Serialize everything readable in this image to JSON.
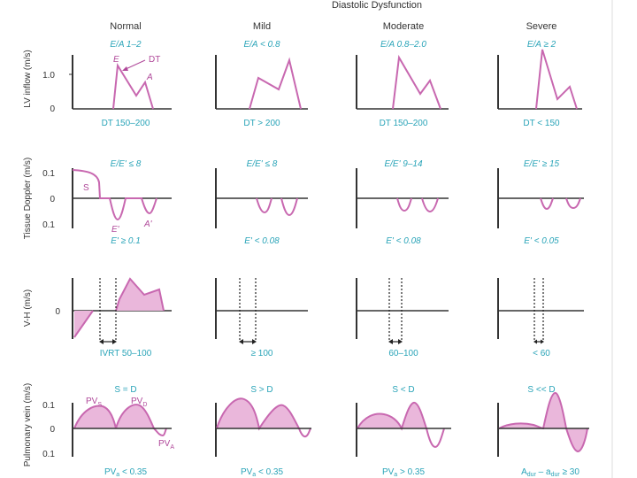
{
  "header": "Diastolic Dysfunction",
  "columns": [
    "Normal",
    "Mild",
    "Moderate",
    "Severe"
  ],
  "colors": {
    "axis": "#333333",
    "curve": "#c868b0",
    "fill": "#eab7db",
    "teal": "#2aa4b8",
    "pink_label": "#b0499a"
  },
  "rows": [
    {
      "ylabel": "LV inflow (m/s)",
      "yticks": [
        "1.0",
        "0"
      ],
      "top": [
        "E/A 1–2",
        "E/A < 0.8",
        "E/A 0.8–2.0",
        "E/A ≥ 2"
      ],
      "bottom": [
        "DT 150–200",
        "DT > 200",
        "DT 150–200",
        "DT < 150"
      ],
      "labels": {
        "e": "E",
        "a": "A",
        "dt": "DT"
      }
    },
    {
      "ylabel": "Tissue Doppler (m/s)",
      "yticks": [
        "0.1",
        "0",
        "0.1"
      ],
      "top": [
        "E/E' ≤ 8",
        "E/E' ≤ 8",
        "E/E' 9–14",
        "E/E' ≥ 15"
      ],
      "bottom": [
        "E' ≥ 0.1",
        "E' < 0.08",
        "E' < 0.08",
        "E' < 0.05"
      ],
      "labels": {
        "s": "S",
        "e": "E'",
        "a": "A'"
      }
    },
    {
      "ylabel": "V-H (m/s)",
      "yticks": [
        "0"
      ],
      "bottom": [
        "IVRT 50–100",
        "≥ 100",
        "60–100",
        "< 60"
      ]
    },
    {
      "ylabel": "Pulmonary vein (m/s)",
      "yticks": [
        "0.1",
        "0",
        "0.1"
      ],
      "top": [
        "S = D",
        "S > D",
        "S < D",
        "S << D"
      ],
      "bottom_main": [
        "PV",
        "PV",
        "PV",
        "A"
      ],
      "bottom_sub": [
        "a",
        "a",
        "a",
        "dur"
      ],
      "bottom_rest": [
        " < 0.35",
        " < 0.35",
        " > 0.35",
        ""
      ],
      "bottom_severe": {
        "mid": " – a",
        "sub": "dur",
        "rest": " ≥ 30"
      },
      "labels": {
        "pv": "PV",
        "s_sub": "S",
        "d_sub": "D",
        "a_sub": "A"
      }
    }
  ]
}
